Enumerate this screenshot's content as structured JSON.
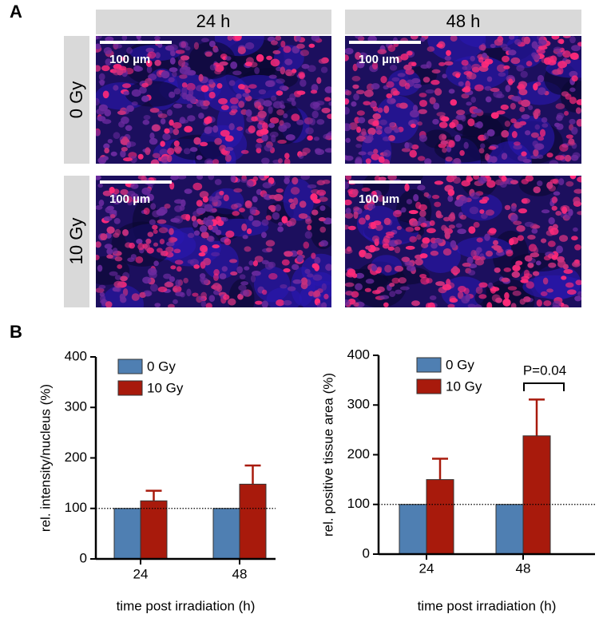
{
  "panel_a": {
    "label": "A",
    "columns": [
      "24 h",
      "48 h"
    ],
    "rows": [
      "0 Gy",
      "10 Gy"
    ],
    "scale_bar": "100 µm"
  },
  "panel_b": {
    "label": "B"
  },
  "chart_data": [
    {
      "type": "bar",
      "categories": [
        "24",
        "48"
      ],
      "series": [
        {
          "name": "0 Gy",
          "color": "#4f7fb2",
          "values": [
            100,
            100
          ]
        },
        {
          "name": "10 Gy",
          "color": "#a81a0c",
          "values": [
            115,
            148
          ],
          "errors": [
            20,
            37
          ]
        }
      ],
      "ylabel": "rel. intensity/nucleus (%)",
      "xlabel": "time post irradiation (h)",
      "ylim": [
        0,
        400
      ],
      "yticks": [
        0,
        100,
        200,
        300,
        400
      ],
      "reference_line": 100
    },
    {
      "type": "bar",
      "categories": [
        "24",
        "48"
      ],
      "series": [
        {
          "name": "0 Gy",
          "color": "#4f7fb2",
          "values": [
            100,
            100
          ]
        },
        {
          "name": "10 Gy",
          "color": "#a81a0c",
          "values": [
            150,
            238
          ],
          "errors": [
            42,
            73
          ]
        }
      ],
      "ylabel": "rel. positive tissue area (%)",
      "xlabel": "time post irradiation (h)",
      "ylim": [
        0,
        400
      ],
      "yticks": [
        0,
        100,
        200,
        300,
        400
      ],
      "reference_line": 100,
      "annotation": "P=0.04"
    }
  ]
}
